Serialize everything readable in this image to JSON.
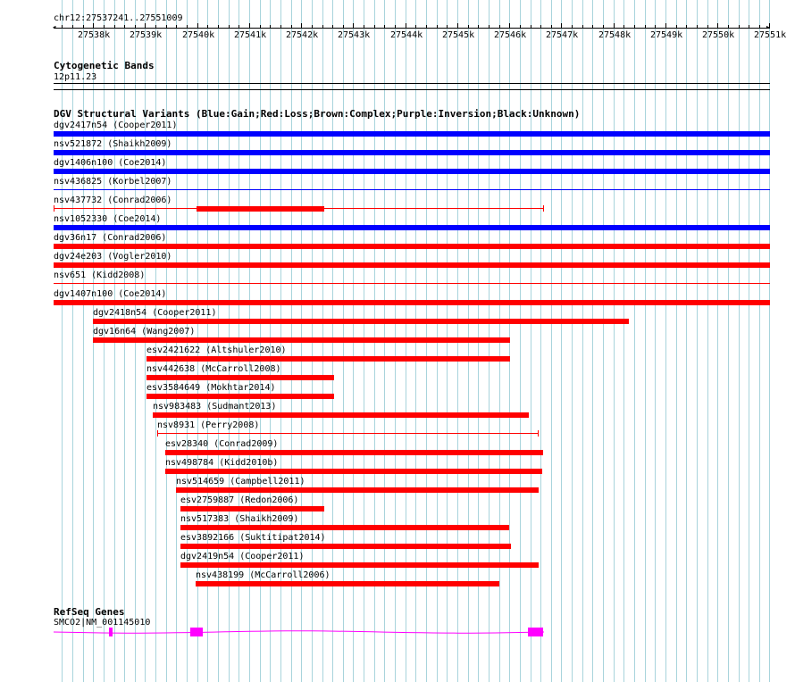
{
  "region": {
    "label": "chr12:27537241..27551009",
    "start": 27537241,
    "end": 27551009
  },
  "ruler": {
    "ticks": [
      "27538k",
      "27539k",
      "27540k",
      "27541k",
      "27542k",
      "27543k",
      "27544k",
      "27545k",
      "27546k",
      "27547k",
      "27548k",
      "27549k",
      "27550k",
      "27551k"
    ]
  },
  "tracks": {
    "cytobands": {
      "title": "Cytogenetic Bands",
      "band": "12p11.23"
    },
    "dgv": {
      "title": "DGV Structural Variants (Blue:Gain;Red:Loss;Brown:Complex;Purple:Inversion;Black:Unknown)",
      "features": [
        {
          "label": "dgv2417n54 (Cooper2011)",
          "type": "gain",
          "start": 27537241,
          "end": 27551009,
          "thick": true
        },
        {
          "label": "nsv521872 (Shaikh2009)",
          "type": "gain",
          "start": 27537241,
          "end": 27551009,
          "thick": true
        },
        {
          "label": "dgv1406n100 (Coe2014)",
          "type": "gain",
          "start": 27537241,
          "end": 27551009,
          "thick": true
        },
        {
          "label": "nsv436825 (Korbel2007)",
          "type": "gain",
          "start": 27537241,
          "end": 27551009,
          "thick": false
        },
        {
          "label": "nsv437732 (Conrad2006)",
          "type": "loss",
          "start": 27537241,
          "end": 27546650,
          "thick": false,
          "thickStart": 27539990,
          "thickEnd": 27542440,
          "cap": true
        },
        {
          "label": "nsv1052330 (Coe2014)",
          "type": "gain",
          "start": 27537241,
          "end": 27551009,
          "thick": true
        },
        {
          "label": "dgv36n17 (Conrad2006)",
          "type": "loss",
          "start": 27537241,
          "end": 27551009,
          "thick": true
        },
        {
          "label": "dgv24e203 (Vogler2010)",
          "type": "loss",
          "start": 27537241,
          "end": 27551009,
          "thick": true
        },
        {
          "label": "nsv651 (Kidd2008)",
          "type": "loss",
          "start": 27537241,
          "end": 27551009,
          "thick": false
        },
        {
          "label": "dgv1407n100 (Coe2014)",
          "type": "loss",
          "start": 27537241,
          "end": 27551009,
          "thick": true
        },
        {
          "label": "dgv2418n54 (Cooper2011)",
          "type": "loss",
          "start": 27538000,
          "end": 27548290,
          "thick": true
        },
        {
          "label": "dgv16n64 (Wang2007)",
          "type": "loss",
          "start": 27538000,
          "end": 27546010,
          "thick": true
        },
        {
          "label": "esv2421622 (Altshuler2010)",
          "type": "loss",
          "start": 27539020,
          "end": 27546010,
          "thick": true
        },
        {
          "label": "nsv442638 (McCarroll2008)",
          "type": "loss",
          "start": 27539020,
          "end": 27542640,
          "thick": true
        },
        {
          "label": "esv3584649 (Mokhtar2014)",
          "type": "loss",
          "start": 27539020,
          "end": 27542640,
          "thick": true
        },
        {
          "label": "nsv983483 (Sudmant2013)",
          "type": "loss",
          "start": 27539150,
          "end": 27546370,
          "thick": true
        },
        {
          "label": "nsv8931 (Perry2008)",
          "type": "loss",
          "start": 27539230,
          "end": 27546550,
          "thick": false,
          "cap": true
        },
        {
          "label": "esv28340 (Conrad2009)",
          "type": "loss",
          "start": 27539380,
          "end": 27546650,
          "thick": true
        },
        {
          "label": "nsv498784 (Kidd2010b)",
          "type": "loss",
          "start": 27539380,
          "end": 27546630,
          "thick": true
        },
        {
          "label": "nsv514659 (Campbell2011)",
          "type": "loss",
          "start": 27539600,
          "end": 27546570,
          "thick": true
        },
        {
          "label": "esv2759887 (Redon2006)",
          "type": "loss",
          "start": 27539680,
          "end": 27542440,
          "thick": true
        },
        {
          "label": "nsv517383 (Shaikh2009)",
          "type": "loss",
          "start": 27539680,
          "end": 27546000,
          "thick": true
        },
        {
          "label": "esv3892166 (Suktitipat2014)",
          "type": "loss",
          "start": 27539680,
          "end": 27546030,
          "thick": true
        },
        {
          "label": "dgv2419n54 (Cooper2011)",
          "type": "loss",
          "start": 27539680,
          "end": 27546570,
          "thick": true
        },
        {
          "label": "nsv438199 (McCarroll2006)",
          "type": "loss",
          "start": 27539970,
          "end": 27545810,
          "thick": true
        }
      ]
    },
    "refseq": {
      "title": "RefSeq Genes",
      "gene": "SMCO2|NM_001145010",
      "start": 27537241,
      "end": 27546670,
      "exons": [
        [
          27538300,
          27538380
        ],
        [
          27539870,
          27540100
        ],
        [
          27546350,
          27546650
        ]
      ]
    }
  },
  "colors": {
    "gain": "#0000ff",
    "loss": "#ff0000",
    "gene": "#ff00ff",
    "grid": "#a8d4dc",
    "axis": "#000000"
  }
}
